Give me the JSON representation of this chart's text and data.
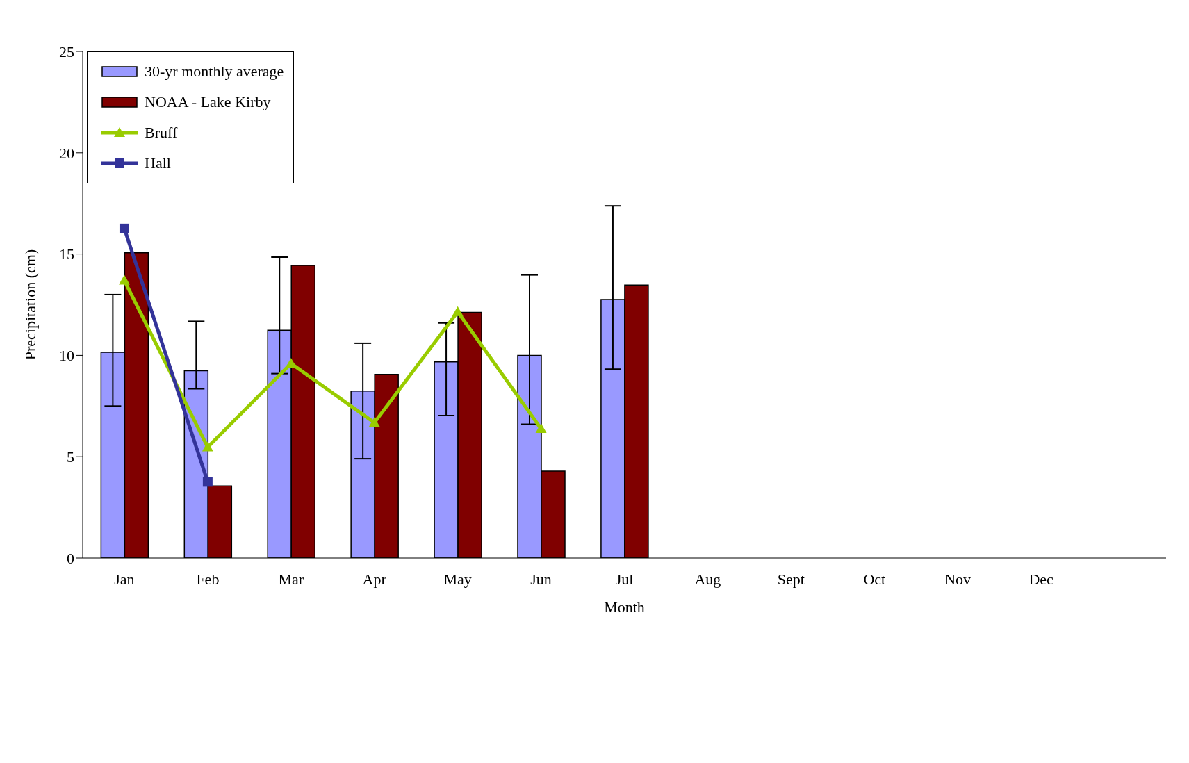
{
  "chart_data": {
    "type": "bar",
    "xlabel": "Month",
    "ylabel": "Precipitation (cm)",
    "categories": [
      "Jan",
      "Feb",
      "Mar",
      "Apr",
      "May",
      "Jun",
      "Jul",
      "Aug",
      "Sept",
      "Oct",
      "Nov",
      "Dec",
      null
    ],
    "series": [
      {
        "name": "30-yr monthly average",
        "color": "#9999ff",
        "values": [
          10.15,
          9.24,
          11.24,
          8.24,
          9.68,
          10.0,
          12.76,
          null,
          null,
          null,
          null,
          null,
          null
        ],
        "errors": [
          [
            7.5,
            13.0
          ],
          [
            8.35,
            11.68
          ],
          [
            9.1,
            14.85
          ],
          [
            4.9,
            10.6
          ],
          [
            7.03,
            11.6
          ],
          [
            6.6,
            13.97
          ],
          [
            9.32,
            17.38
          ],
          null,
          null,
          null,
          null,
          null,
          null
        ]
      },
      {
        "name": "NOAA - Lake Kirby",
        "color": "#800000",
        "values": [
          15.06,
          3.56,
          14.44,
          9.06,
          12.12,
          4.29,
          13.47,
          null,
          null,
          null,
          null,
          null,
          null
        ]
      },
      {
        "name": "Bruff",
        "type": "line",
        "color": "#99cc00",
        "marker": "triangle",
        "values": [
          13.7,
          5.47,
          9.6,
          6.68,
          12.15,
          6.38,
          null,
          null,
          null,
          null,
          null,
          null,
          null
        ]
      },
      {
        "name": "Hall",
        "type": "line",
        "color": "#333399",
        "marker": "square",
        "values": [
          16.26,
          3.76,
          null,
          null,
          null,
          null,
          null,
          null,
          null,
          null,
          null,
          null,
          null
        ]
      }
    ],
    "ylim": [
      0,
      25
    ],
    "yticks": [
      0,
      5,
      10,
      15,
      20,
      25
    ],
    "grid": false,
    "legend": "top left"
  }
}
